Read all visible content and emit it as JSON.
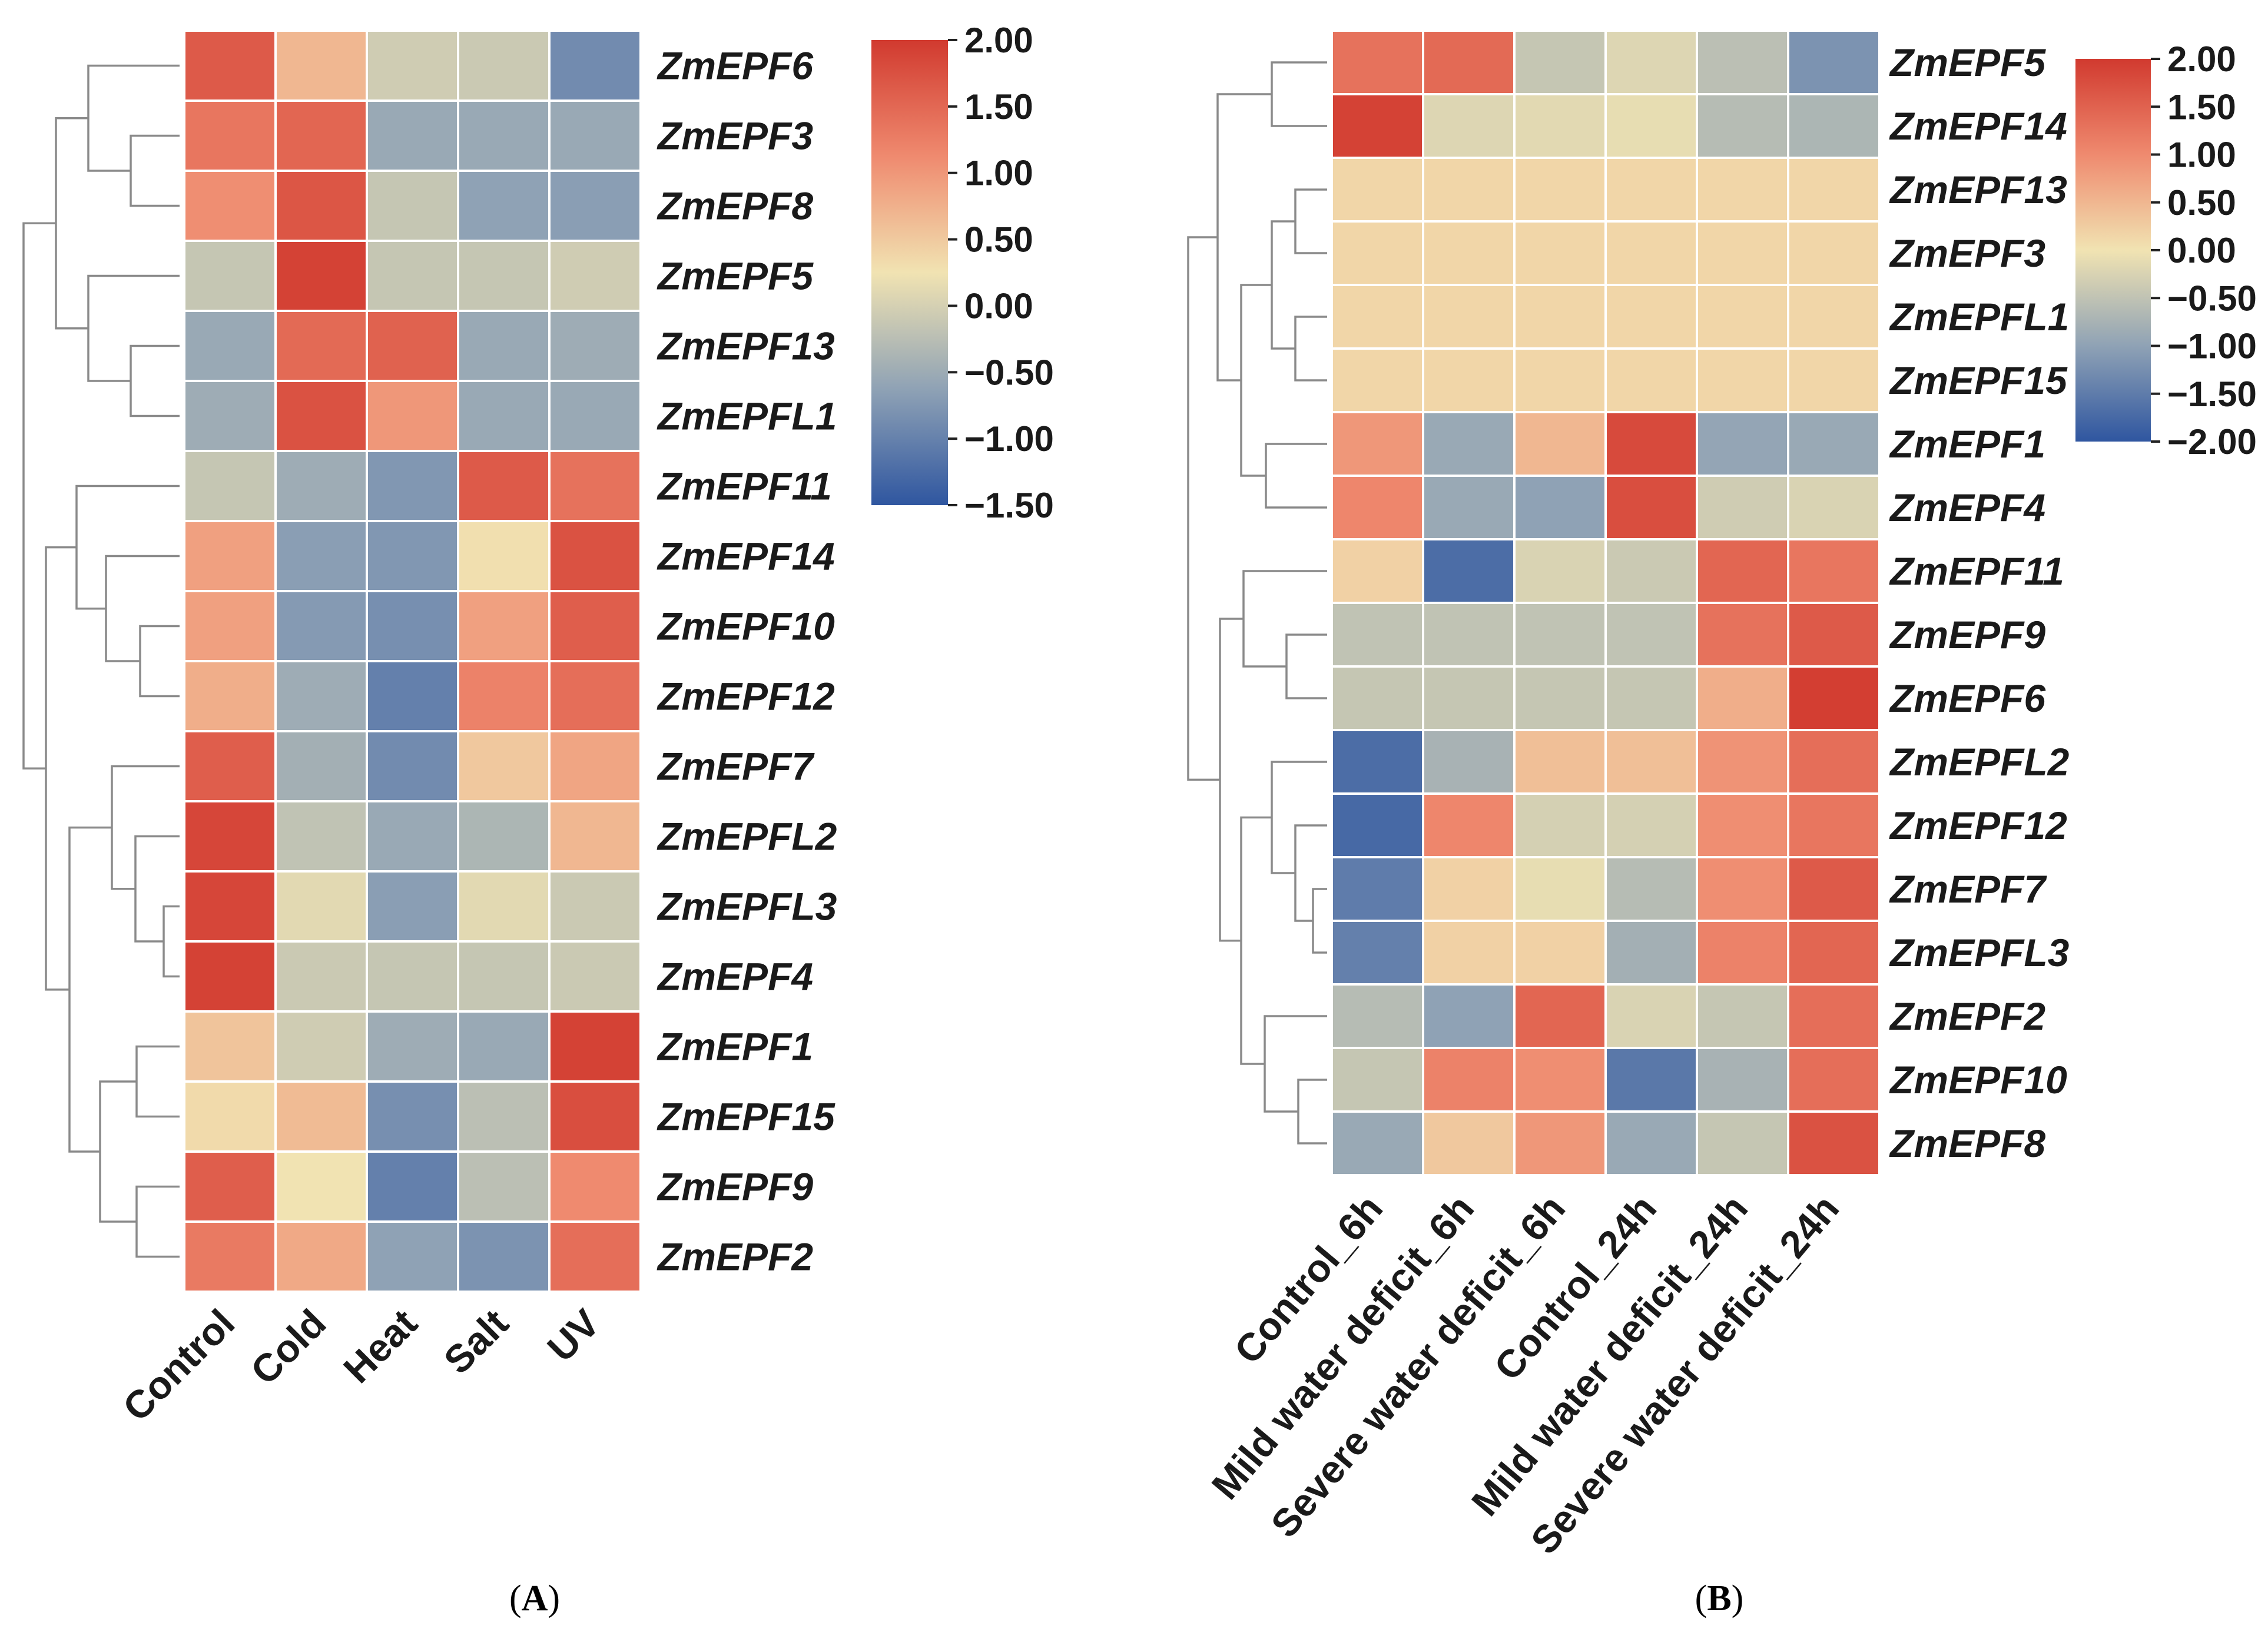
{
  "figure": {
    "panels": [
      {
        "label": "A"
      },
      {
        "label": "B"
      }
    ]
  },
  "chart_data": [
    {
      "type": "heatmap",
      "panel": "A",
      "title": "",
      "xlabel": "",
      "ylabel": "",
      "columns": [
        "Control",
        "Cold",
        "Heat",
        "Salt",
        "UV"
      ],
      "rows": [
        "ZmEPF6",
        "ZmEPF3",
        "ZmEPF8",
        "ZmEPF5",
        "ZmEPF13",
        "ZmEPFL1",
        "ZmEPF11",
        "ZmEPF14",
        "ZmEPF10",
        "ZmEPF12",
        "ZmEPF7",
        "ZmEPFL2",
        "ZmEPFL3",
        "ZmEPF4",
        "ZmEPF1",
        "ZmEPF15",
        "ZmEPF9",
        "ZmEPF2"
      ],
      "values": [
        [
          1.6,
          0.5,
          -0.35,
          -0.4,
          -1.3
        ],
        [
          1.25,
          1.45,
          -0.9,
          -0.9,
          -0.9
        ],
        [
          0.95,
          1.65,
          -0.45,
          -1.0,
          -1.05
        ],
        [
          -0.45,
          1.9,
          -0.45,
          -0.45,
          -0.35
        ],
        [
          -0.9,
          1.4,
          1.5,
          -0.9,
          -0.85
        ],
        [
          -0.85,
          1.7,
          0.85,
          -0.9,
          -0.9
        ],
        [
          -0.45,
          -0.85,
          -1.15,
          1.6,
          1.3
        ],
        [
          0.75,
          -1.05,
          -1.15,
          0.05,
          1.7
        ],
        [
          0.75,
          -1.1,
          -1.25,
          0.75,
          1.55
        ],
        [
          0.6,
          -0.85,
          -1.45,
          1.1,
          1.35
        ],
        [
          1.55,
          -0.8,
          -1.3,
          0.3,
          0.7
        ],
        [
          1.85,
          -0.5,
          -0.9,
          -0.7,
          0.5
        ],
        [
          1.85,
          -0.15,
          -1.05,
          -0.15,
          -0.4
        ],
        [
          1.9,
          -0.4,
          -0.45,
          -0.45,
          -0.4
        ],
        [
          0.35,
          -0.35,
          -0.85,
          -0.9,
          1.9
        ],
        [
          0.1,
          0.45,
          -1.25,
          -0.55,
          1.75
        ],
        [
          1.55,
          0.0,
          -1.45,
          -0.55,
          1.0
        ],
        [
          1.2,
          0.65,
          -1.0,
          -1.2,
          1.35
        ]
      ],
      "colorbar": {
        "min": -1.5,
        "max": 2.0,
        "ticks": [
          "2.00",
          "1.50",
          "1.00",
          "0.50",
          "0.00",
          "−0.50",
          "−1.00",
          "−1.50"
        ]
      },
      "dendrogram": "rows, left side"
    },
    {
      "type": "heatmap",
      "panel": "B",
      "title": "",
      "xlabel": "",
      "ylabel": "",
      "columns": [
        "Control_6h",
        "Mild water deficit_6h",
        "Severe water deficit_6h",
        "Control_24h",
        "Mild water deficit_24h",
        "Severe water deficit_24h"
      ],
      "rows": [
        "ZmEPF5",
        "ZmEPF14",
        "ZmEPF13",
        "ZmEPF3",
        "ZmEPFL1",
        "ZmEPF15",
        "ZmEPF1",
        "ZmEPF4",
        "ZmEPF11",
        "ZmEPF9",
        "ZmEPF6",
        "ZmEPFL2",
        "ZmEPF12",
        "ZmEPF7",
        "ZmEPFL3",
        "ZmEPF2",
        "ZmEPF10",
        "ZmEPF8"
      ],
      "values": [
        [
          1.3,
          1.4,
          -0.45,
          -0.2,
          -0.55,
          -1.2
        ],
        [
          1.9,
          -0.2,
          -0.15,
          -0.1,
          -0.6,
          -0.7
        ],
        [
          0.15,
          0.15,
          0.15,
          0.15,
          0.15,
          0.15
        ],
        [
          0.15,
          0.15,
          0.15,
          0.15,
          0.15,
          0.15
        ],
        [
          0.15,
          0.15,
          0.15,
          0.15,
          0.15,
          0.15
        ],
        [
          0.15,
          0.15,
          0.15,
          0.15,
          0.15,
          0.15
        ],
        [
          0.85,
          -0.9,
          0.5,
          1.8,
          -0.95,
          -0.9
        ],
        [
          1.05,
          -0.9,
          -1.0,
          1.75,
          -0.35,
          -0.25
        ],
        [
          0.2,
          -1.7,
          -0.25,
          -0.4,
          1.45,
          1.25
        ],
        [
          -0.5,
          -0.5,
          -0.5,
          -0.5,
          1.3,
          1.6
        ],
        [
          -0.45,
          -0.45,
          -0.45,
          -0.45,
          0.6,
          1.95
        ],
        [
          -1.7,
          -0.75,
          0.4,
          0.4,
          0.9,
          1.35
        ],
        [
          -1.75,
          1.05,
          -0.3,
          -0.3,
          0.95,
          1.25
        ],
        [
          -1.5,
          0.2,
          -0.1,
          -0.6,
          0.95,
          1.6
        ],
        [
          -1.45,
          0.2,
          0.2,
          -0.8,
          1.1,
          1.45
        ],
        [
          -0.6,
          -1.0,
          1.45,
          -0.25,
          -0.45,
          1.35
        ],
        [
          -0.45,
          1.1,
          0.95,
          -1.55,
          -0.75,
          1.35
        ],
        [
          -0.9,
          0.3,
          0.85,
          -0.9,
          -0.45,
          1.7
        ]
      ],
      "colorbar": {
        "min": -2.0,
        "max": 2.0,
        "ticks": [
          "2.00",
          "1.50",
          "1.00",
          "0.50",
          "0.00",
          "−0.50",
          "−1.00",
          "−1.50",
          "−2.00"
        ]
      },
      "dendrogram": "rows, left side"
    }
  ]
}
